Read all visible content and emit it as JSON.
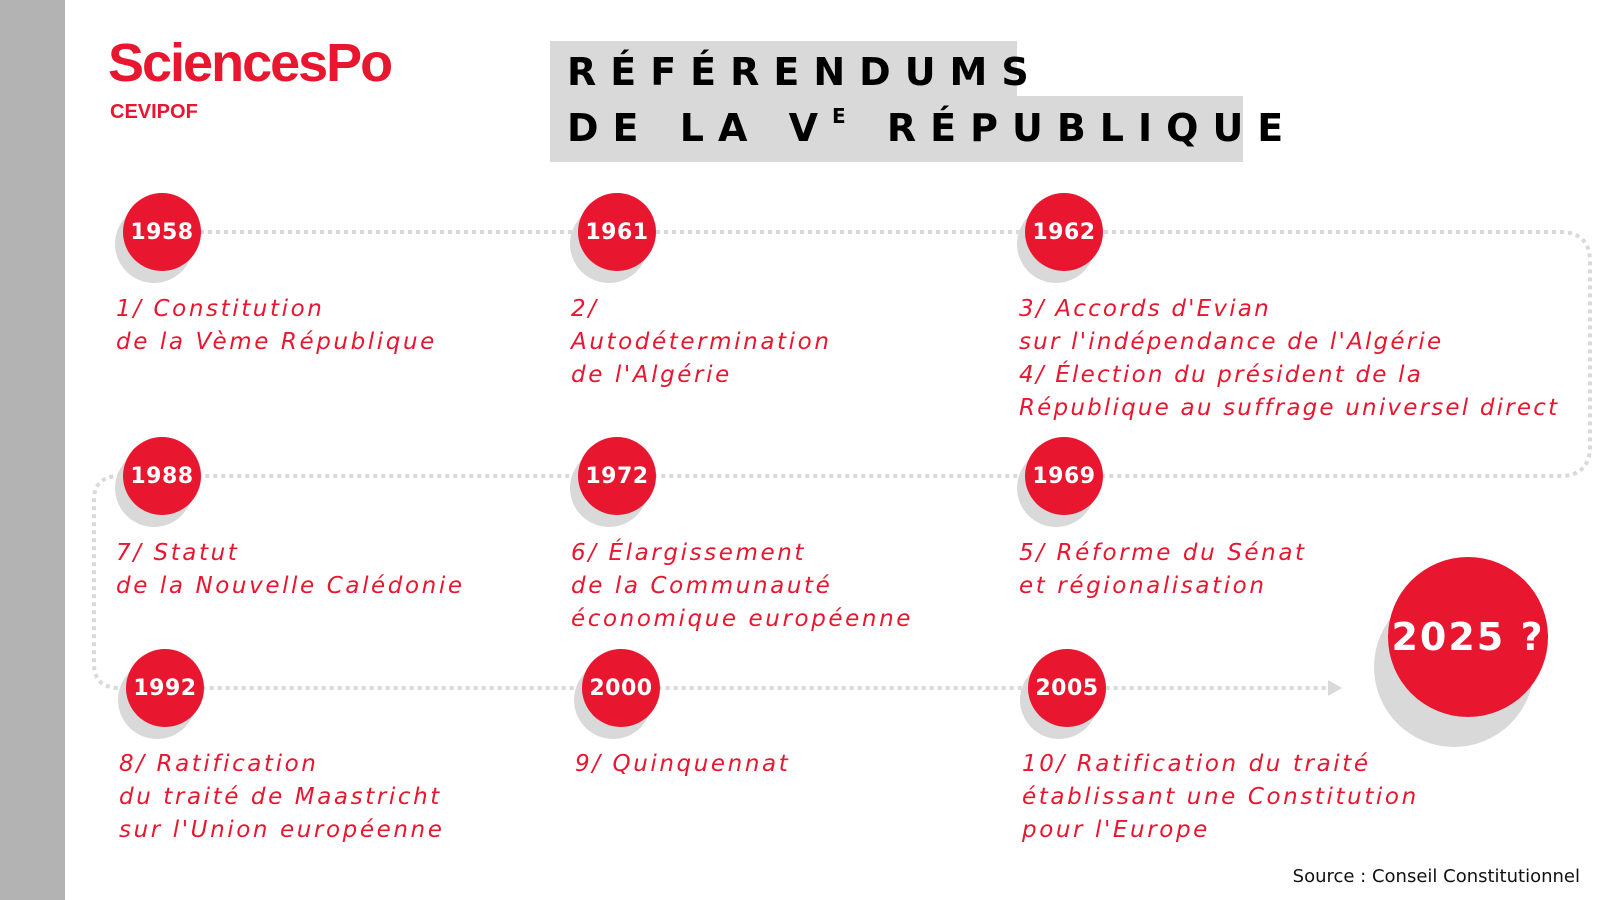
{
  "logo": {
    "brand": "SciencesPo",
    "sub": "CEVIPOF"
  },
  "title": {
    "line1": "RÉFÉRENDUMS",
    "line2_prefix": "DE LA V",
    "line2_sup": "E",
    "line2_suffix": " RÉPUBLIQUE"
  },
  "colors": {
    "accent": "#e8162f",
    "shadow": "#d9d9d9",
    "sidebar": "#b3b3b3"
  },
  "events": [
    {
      "year": "1958",
      "lines": [
        "1/ Constitution",
        "de la Vème République"
      ]
    },
    {
      "year": "1961",
      "lines": [
        "2/",
        "Autodétermination",
        "de l'Algérie"
      ]
    },
    {
      "year": "1962",
      "lines": [
        "3/ Accords d'Evian",
        "sur l'indépendance de l'Algérie",
        "4/ Élection du président de la",
        "République au suffrage universel direct"
      ]
    },
    {
      "year": "1969",
      "lines": [
        "5/ Réforme du Sénat",
        "et régionalisation"
      ]
    },
    {
      "year": "1972",
      "lines": [
        "6/ Élargissement",
        "de la Communauté",
        "économique européenne"
      ]
    },
    {
      "year": "1988",
      "lines": [
        "7/ Statut",
        "de la Nouvelle Calédonie"
      ]
    },
    {
      "year": "1992",
      "lines": [
        "8/ Ratification",
        "du traité de Maastricht",
        "sur l'Union européenne"
      ]
    },
    {
      "year": "2000",
      "lines": [
        "9/ Quinquennat"
      ]
    },
    {
      "year": "2005",
      "lines": [
        "10/ Ratification du traité",
        "établissant une Constitution",
        "pour l'Europe"
      ]
    }
  ],
  "future": "2025 ?",
  "source": "Source : Conseil Constitutionnel"
}
